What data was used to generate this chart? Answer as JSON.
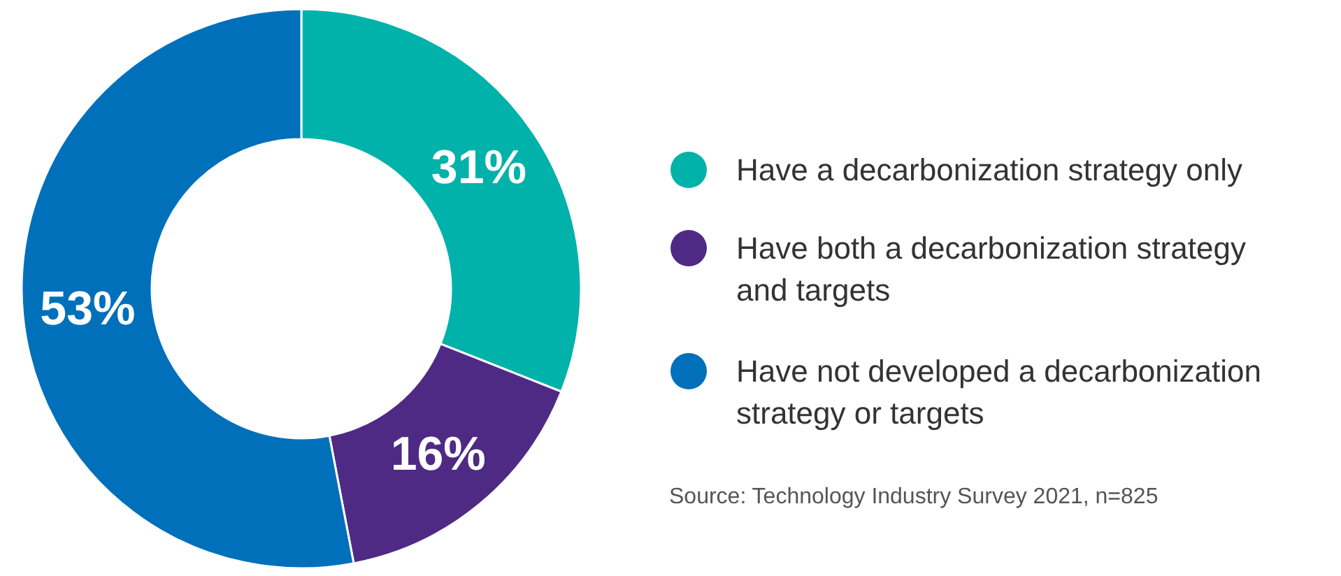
{
  "chart_data": {
    "type": "donut",
    "categories": [
      "Have a decarbonization strategy only",
      "Have both a decarbonization strategy and targets",
      "Have not developed a decarbonization strategy or targets"
    ],
    "values": [
      31,
      16,
      53
    ],
    "colors": [
      "#00b2a9",
      "#4f2a85",
      "#0070bb"
    ],
    "value_labels": [
      "31%",
      "16%",
      "53%"
    ],
    "legend": "right",
    "annotations": [
      "Source: Technology Industry Survey 2021, n=825"
    ]
  }
}
